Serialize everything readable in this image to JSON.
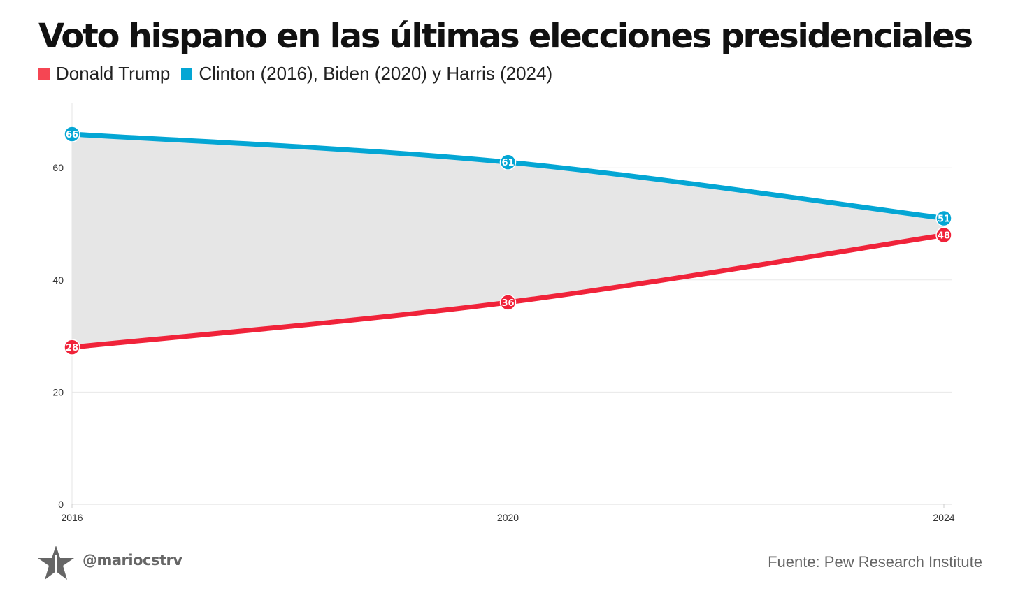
{
  "chart_data": {
    "type": "area",
    "title": "Voto hispano en las últimas elecciones presidenciales",
    "x": [
      2016,
      2020,
      2024
    ],
    "xticks": [
      "2016",
      "2020",
      "2024"
    ],
    "yticks": [
      0,
      20,
      40,
      60
    ],
    "ylim": [
      0,
      70
    ],
    "grid": true,
    "legend_position": "top-left",
    "series": [
      {
        "name": "Donald Trump",
        "color": "#f0233a",
        "values": [
          28,
          36,
          48
        ]
      },
      {
        "name": "Clinton (2016), Biden (2020) y Harris (2024)",
        "color": "#04a6d4",
        "values": [
          66,
          61,
          51
        ]
      }
    ],
    "fill_between_color": "#e6e6e6"
  },
  "footer": {
    "handle": "@mariocstrv",
    "source": "Fuente: Pew Research Institute"
  }
}
